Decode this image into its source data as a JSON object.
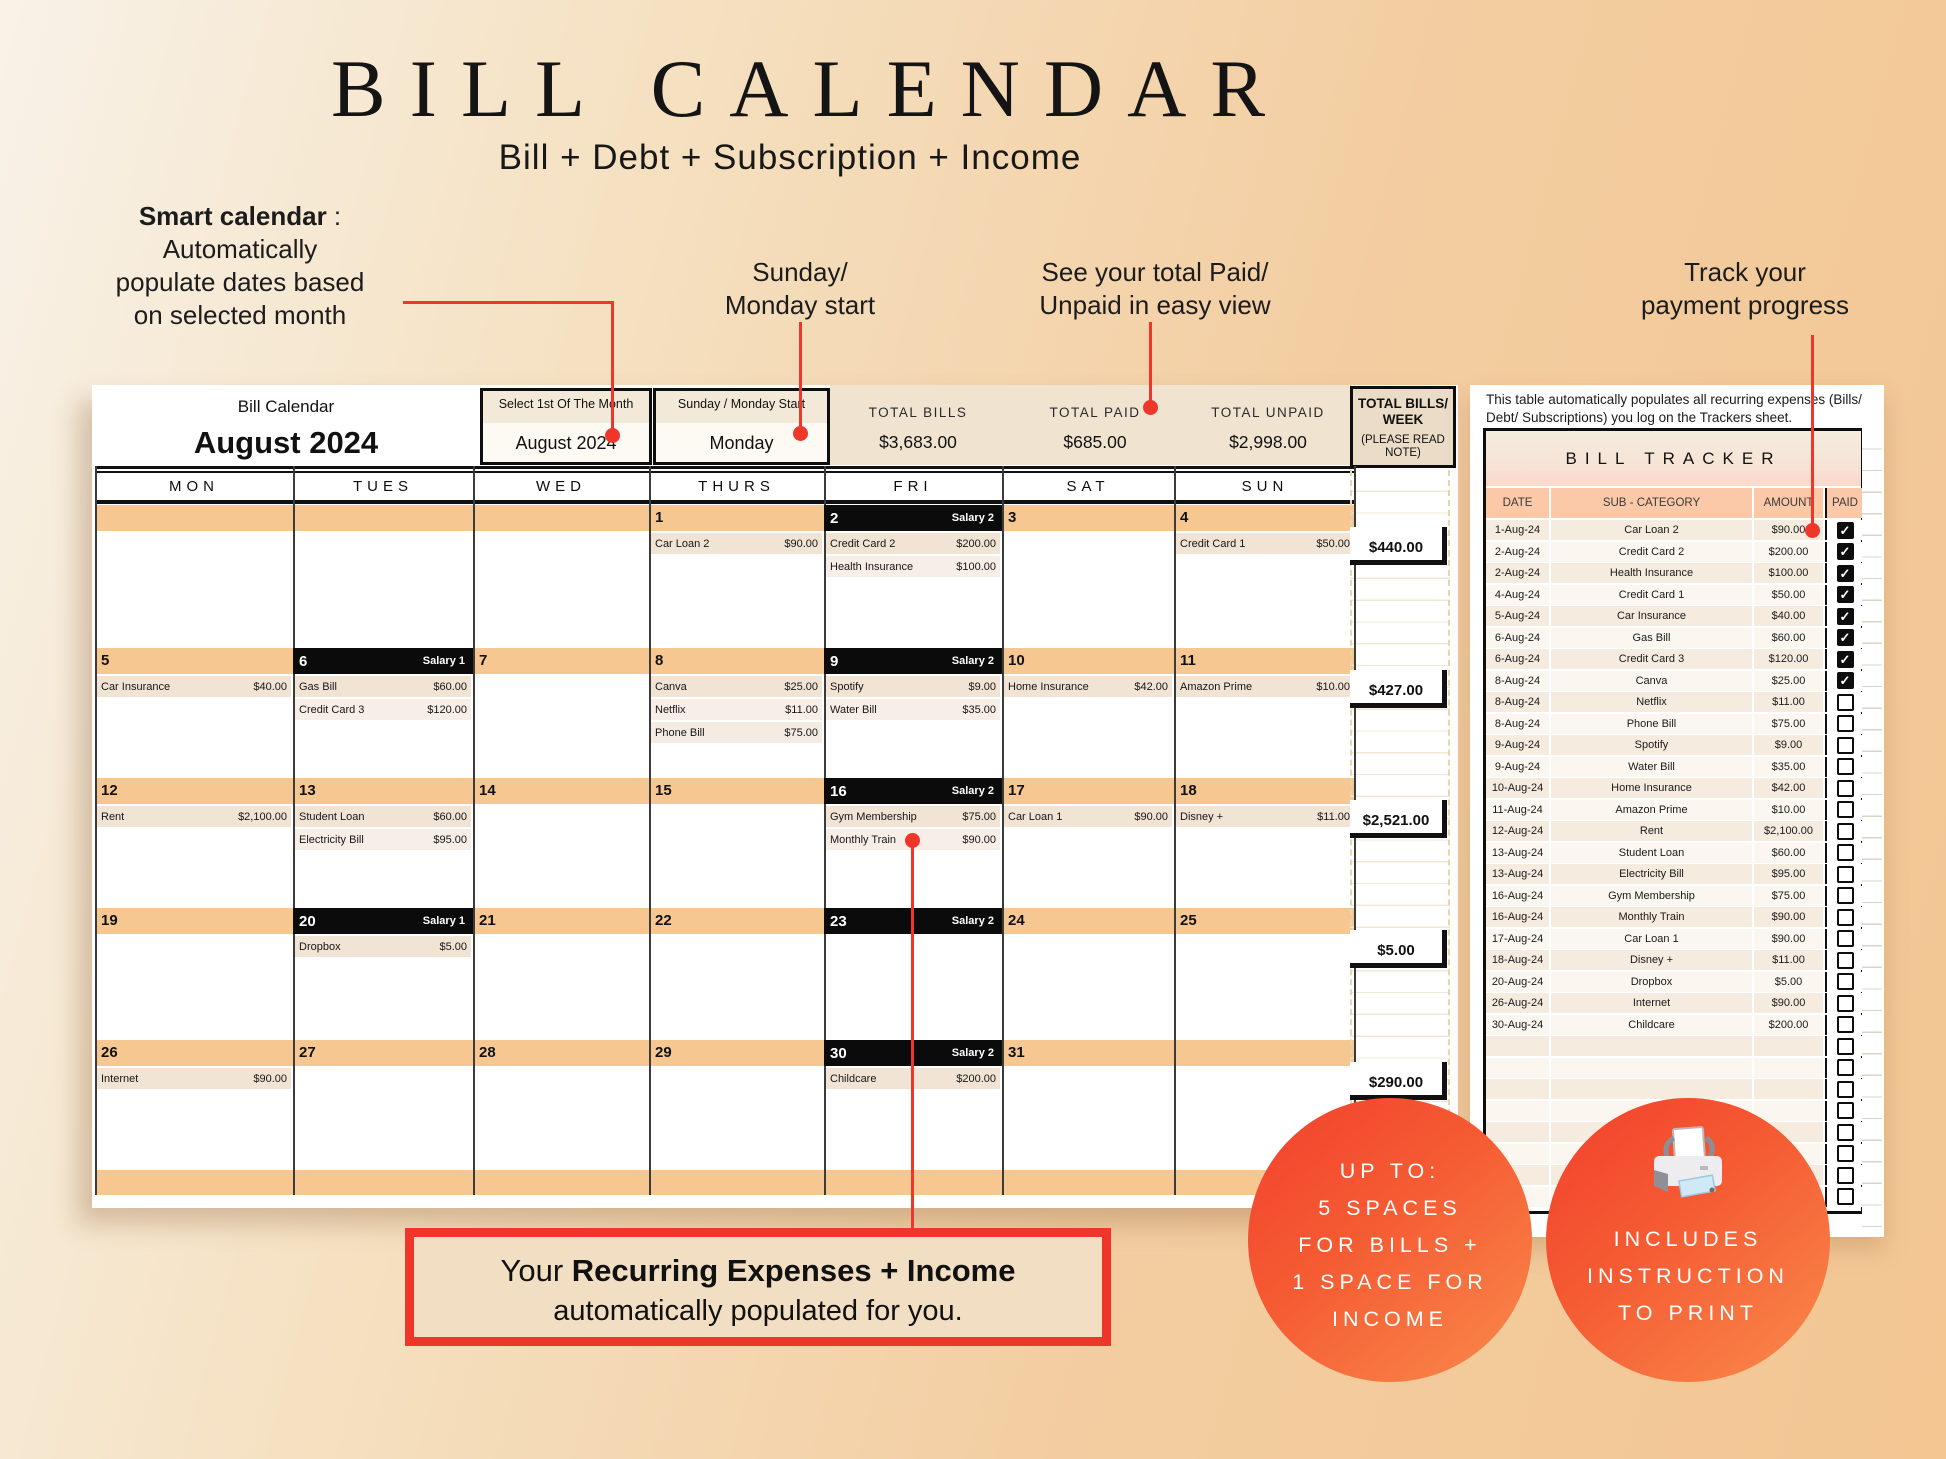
{
  "page": {
    "title": "BILL CALENDAR",
    "subtitle": "Bill + Debt + Subscription + Income"
  },
  "annotations": {
    "smart_bold": "Smart calendar",
    "smart_colon": " :",
    "smart_lines": [
      "Automatically",
      "populate dates based",
      "on selected month"
    ],
    "sunday_monday": [
      "Sunday/",
      "Monday start"
    ],
    "paid_unpaid": [
      "See your total Paid/",
      "Unpaid in easy view"
    ],
    "track_progress": [
      "Track your",
      "payment progress"
    ],
    "recurring_prefix": "Your ",
    "recurring_bold": "Recurring Expenses + Income",
    "recurring_line2": "automatically populated for you."
  },
  "badges": {
    "spaces_lines": [
      "UP TO:",
      "5 SPACES",
      "FOR BILLS +",
      "1 SPACE FOR",
      "INCOME"
    ],
    "print_lines": [
      "INCLUDES",
      "INSTRUCTION",
      "TO PRINT"
    ],
    "printer_icon": "printer-icon"
  },
  "sheet_header": {
    "label": "Bill Calendar",
    "month_title": "August 2024",
    "select_month": {
      "label": "Select 1st Of The Month",
      "value": "August  2024"
    },
    "start_select": {
      "label": "Sunday / Monday Start",
      "value": "Monday"
    },
    "totals": [
      {
        "label": "TOTAL BILLS",
        "value": "$3,683.00"
      },
      {
        "label": "TOTAL PAID",
        "value": "$685.00"
      },
      {
        "label": "TOTAL UNPAID",
        "value": "$2,998.00"
      }
    ],
    "week_total_header": {
      "line1": "TOTAL BILLS/",
      "line2": "WEEK",
      "note": "(PLEASE READ NOTE)"
    }
  },
  "calendar": {
    "day_headers": [
      "MON",
      "TUES",
      "WED",
      "THURS",
      "FRI",
      "SAT",
      "SUN"
    ],
    "weeks": [
      {
        "total": "$440.00",
        "days": [
          {},
          {},
          {},
          {
            "date": "1",
            "entries": [
              [
                "Car Loan 2",
                "$90.00"
              ]
            ]
          },
          {
            "date": "2",
            "salary": "Salary 2",
            "entries": [
              [
                "Credit Card 2",
                "$200.00"
              ],
              [
                "Health Insurance",
                "$100.00"
              ]
            ]
          },
          {
            "date": "3"
          },
          {
            "date": "4",
            "entries": [
              [
                "Credit Card 1",
                "$50.00"
              ]
            ]
          }
        ]
      },
      {
        "total": "$427.00",
        "days": [
          {
            "date": "5",
            "entries": [
              [
                "Car Insurance",
                "$40.00"
              ]
            ]
          },
          {
            "date": "6",
            "salary": "Salary 1",
            "entries": [
              [
                "Gas Bill",
                "$60.00"
              ],
              [
                "Credit Card 3",
                "$120.00"
              ]
            ]
          },
          {
            "date": "7"
          },
          {
            "date": "8",
            "entries": [
              [
                "Canva",
                "$25.00"
              ],
              [
                "Netflix",
                "$11.00"
              ],
              [
                "Phone Bill",
                "$75.00"
              ]
            ]
          },
          {
            "date": "9",
            "salary": "Salary 2",
            "entries": [
              [
                "Spotify",
                "$9.00"
              ],
              [
                "Water Bill",
                "$35.00"
              ]
            ]
          },
          {
            "date": "10",
            "entries": [
              [
                "Home Insurance",
                "$42.00"
              ]
            ]
          },
          {
            "date": "11",
            "entries": [
              [
                "Amazon Prime",
                "$10.00"
              ]
            ]
          }
        ]
      },
      {
        "total": "$2,521.00",
        "days": [
          {
            "date": "12",
            "entries": [
              [
                "Rent",
                "$2,100.00"
              ]
            ]
          },
          {
            "date": "13",
            "entries": [
              [
                "Student Loan",
                "$60.00"
              ],
              [
                "Electricity Bill",
                "$95.00"
              ]
            ]
          },
          {
            "date": "14"
          },
          {
            "date": "15"
          },
          {
            "date": "16",
            "salary": "Salary 2",
            "entries": [
              [
                "Gym Membership",
                "$75.00"
              ],
              [
                "Monthly Train",
                "$90.00"
              ]
            ]
          },
          {
            "date": "17",
            "entries": [
              [
                "Car Loan 1",
                "$90.00"
              ]
            ]
          },
          {
            "date": "18",
            "entries": [
              [
                "Disney +",
                "$11.00"
              ]
            ]
          }
        ]
      },
      {
        "total": "$5.00",
        "days": [
          {
            "date": "19"
          },
          {
            "date": "20",
            "salary": "Salary 1",
            "entries": [
              [
                "Dropbox",
                "$5.00"
              ]
            ]
          },
          {
            "date": "21"
          },
          {
            "date": "22"
          },
          {
            "date": "23",
            "salary": "Salary 2"
          },
          {
            "date": "24"
          },
          {
            "date": "25"
          }
        ]
      },
      {
        "total": "$290.00",
        "days": [
          {
            "date": "26",
            "entries": [
              [
                "Internet",
                "$90.00"
              ]
            ]
          },
          {
            "date": "27"
          },
          {
            "date": "28"
          },
          {
            "date": "29"
          },
          {
            "date": "30",
            "salary": "Salary 2",
            "entries": [
              [
                "Childcare",
                "$200.00"
              ]
            ]
          },
          {
            "date": "31"
          },
          {}
        ]
      }
    ]
  },
  "tracker": {
    "note_lines": [
      "This table automatically populates all recurring expenses (Bills/",
      "Debt/ Subscriptions) you log on the Trackers sheet."
    ],
    "title": "BILL TRACKER",
    "columns": [
      "DATE",
      "SUB - CATEGORY",
      "AMOUNT",
      "PAID"
    ],
    "check_glyph": "✓",
    "rows": [
      [
        "1-Aug-24",
        "Car Loan 2",
        "$90.00",
        1
      ],
      [
        "2-Aug-24",
        "Credit Card 2",
        "$200.00",
        1
      ],
      [
        "2-Aug-24",
        "Health Insurance",
        "$100.00",
        1
      ],
      [
        "4-Aug-24",
        "Credit Card 1",
        "$50.00",
        1
      ],
      [
        "5-Aug-24",
        "Car Insurance",
        "$40.00",
        1
      ],
      [
        "6-Aug-24",
        "Gas Bill",
        "$60.00",
        1
      ],
      [
        "6-Aug-24",
        "Credit Card 3",
        "$120.00",
        1
      ],
      [
        "8-Aug-24",
        "Canva",
        "$25.00",
        1
      ],
      [
        "8-Aug-24",
        "Netflix",
        "$11.00",
        0
      ],
      [
        "8-Aug-24",
        "Phone Bill",
        "$75.00",
        0
      ],
      [
        "9-Aug-24",
        "Spotify",
        "$9.00",
        0
      ],
      [
        "9-Aug-24",
        "Water Bill",
        "$35.00",
        0
      ],
      [
        "10-Aug-24",
        "Home Insurance",
        "$42.00",
        0
      ],
      [
        "11-Aug-24",
        "Amazon Prime",
        "$10.00",
        0
      ],
      [
        "12-Aug-24",
        "Rent",
        "$2,100.00",
        0
      ],
      [
        "13-Aug-24",
        "Student Loan",
        "$60.00",
        0
      ],
      [
        "13-Aug-24",
        "Electricity Bill",
        "$95.00",
        0
      ],
      [
        "16-Aug-24",
        "Gym Membership",
        "$75.00",
        0
      ],
      [
        "16-Aug-24",
        "Monthly Train",
        "$90.00",
        0
      ],
      [
        "17-Aug-24",
        "Car Loan 1",
        "$90.00",
        0
      ],
      [
        "18-Aug-24",
        "Disney +",
        "$11.00",
        0
      ],
      [
        "20-Aug-24",
        "Dropbox",
        "$5.00",
        0
      ],
      [
        "26-Aug-24",
        "Internet",
        "$90.00",
        0
      ],
      [
        "30-Aug-24",
        "Childcare",
        "$200.00",
        0
      ]
    ],
    "empty_rows": 8
  },
  "colors": {
    "accent_red": "#ee372a",
    "orange_band": "#f7c792",
    "tracker_header": "#fbc9a8",
    "circle_gradient_start": "#f2432e",
    "circle_gradient_end": "#f98b4c",
    "chip_black": "#0b0b0b"
  }
}
